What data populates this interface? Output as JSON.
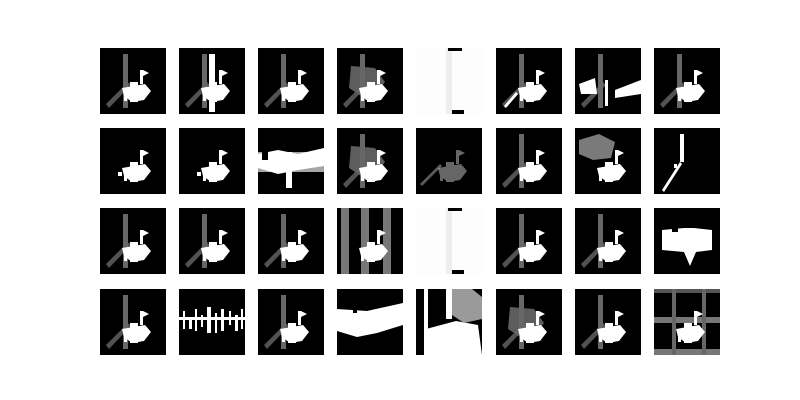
{
  "figure": {
    "background": "#ffffff",
    "grid": {
      "rows": 4,
      "cols": 8
    },
    "tiles": [
      {
        "variant": "a"
      },
      {
        "variant": "b"
      },
      {
        "variant": "a"
      },
      {
        "variant": "c"
      },
      {
        "variant": "white"
      },
      {
        "variant": "d"
      },
      {
        "variant": "e"
      },
      {
        "variant": "a"
      },
      {
        "variant": "f"
      },
      {
        "variant": "f"
      },
      {
        "variant": "g"
      },
      {
        "variant": "c"
      },
      {
        "variant": "h"
      },
      {
        "variant": "a"
      },
      {
        "variant": "i"
      },
      {
        "variant": "j"
      },
      {
        "variant": "a"
      },
      {
        "variant": "a"
      },
      {
        "variant": "a"
      },
      {
        "variant": "k"
      },
      {
        "variant": "white"
      },
      {
        "variant": "a"
      },
      {
        "variant": "a"
      },
      {
        "variant": "l"
      },
      {
        "variant": "a"
      },
      {
        "variant": "m"
      },
      {
        "variant": "a"
      },
      {
        "variant": "n"
      },
      {
        "variant": "o"
      },
      {
        "variant": "c"
      },
      {
        "variant": "a"
      },
      {
        "variant": "p"
      }
    ]
  }
}
